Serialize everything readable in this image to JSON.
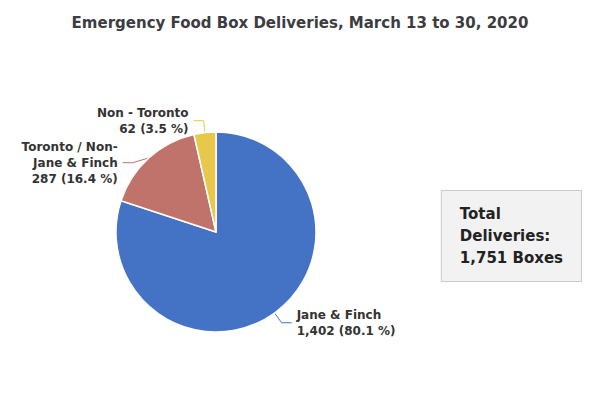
{
  "chart_data": {
    "type": "pie",
    "title": "Emergency Food Box Deliveries, March 13 to 30, 2020",
    "categories": [
      "Jane & Finch",
      "Toronto / Non-\nJane & Finch",
      "Non - Toronto"
    ],
    "values": [
      1402,
      287,
      62
    ],
    "value_labels": [
      "1,402 (80.1 %)",
      "287 (16.4 %)",
      "62 (3.5 %)"
    ],
    "colors": [
      "#4472C4",
      "#C0736A",
      "#E8C84A"
    ],
    "data_labels": true,
    "annotation": "Total\nDeliveries:\n1,751 Boxes"
  }
}
